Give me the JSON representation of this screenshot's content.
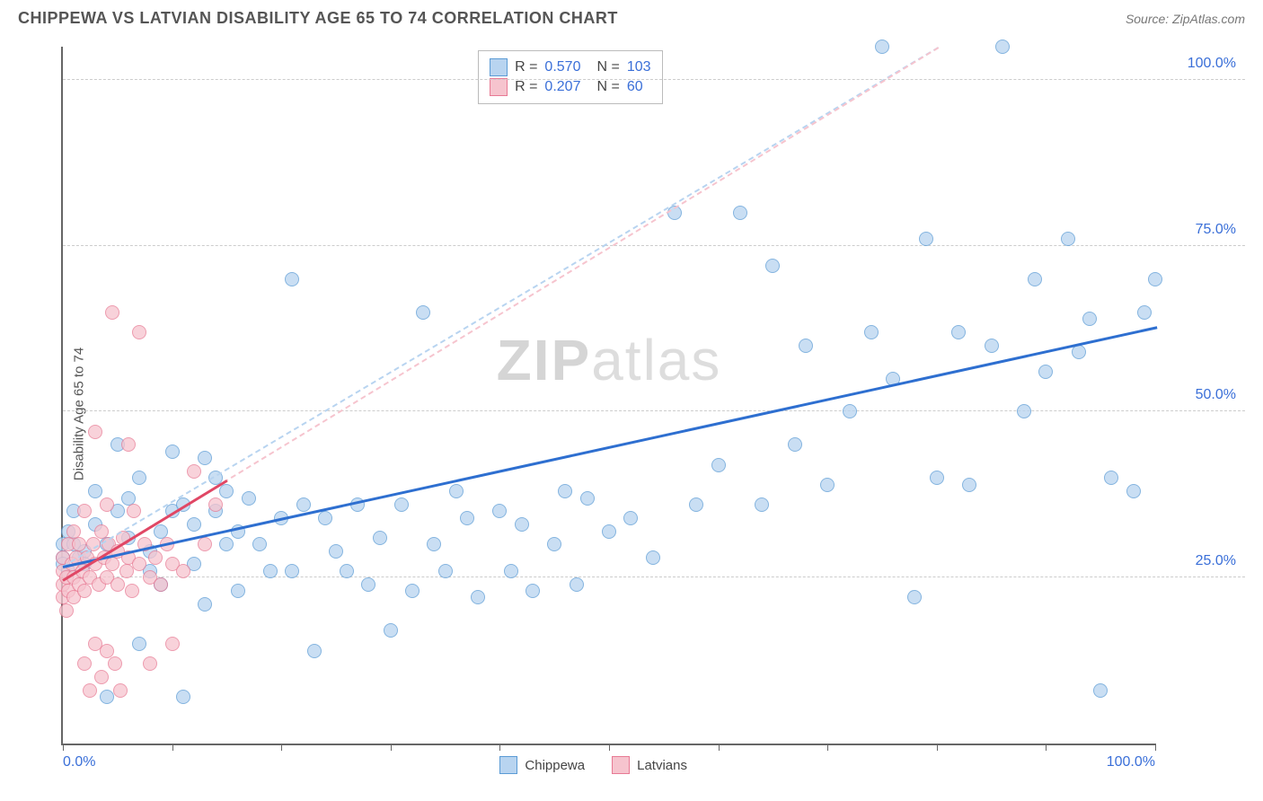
{
  "title": "CHIPPEWA VS LATVIAN DISABILITY AGE 65 TO 74 CORRELATION CHART",
  "source_label": "Source: ZipAtlas.com",
  "y_axis_label": "Disability Age 65 to 74",
  "watermark": {
    "part1": "ZIP",
    "part2": "atlas"
  },
  "chart": {
    "type": "scatter",
    "xlim": [
      0,
      100
    ],
    "ylim": [
      0,
      105
    ],
    "y_ticks": [
      25,
      50,
      75,
      100
    ],
    "y_tick_labels": [
      "25.0%",
      "50.0%",
      "75.0%",
      "100.0%"
    ],
    "x_ticks": [
      0,
      10,
      20,
      30,
      40,
      50,
      60,
      70,
      80,
      90,
      100
    ],
    "x_tick_labels_ends": [
      "0.0%",
      "100.0%"
    ],
    "background_color": "#ffffff",
    "grid_color": "#cccccc",
    "point_radius": 8,
    "series": [
      {
        "name": "Chippewa",
        "fill_color": "#b8d4f0",
        "stroke_color": "#5b9bd5",
        "r_value": "0.570",
        "n_value": "103",
        "trend": {
          "x1": 0,
          "y1": 27,
          "x2": 100,
          "y2": 63,
          "color": "#2e6fd0",
          "width": 3,
          "solid": true
        },
        "trend_dash": {
          "x1": 0,
          "y1": 27,
          "x2": 80,
          "y2": 105,
          "color": "#b8d4f0"
        },
        "points": [
          [
            0,
            28
          ],
          [
            0,
            30
          ],
          [
            0,
            27
          ],
          [
            0.5,
            26
          ],
          [
            0.5,
            32
          ],
          [
            1,
            35
          ],
          [
            1,
            30
          ],
          [
            1.5,
            28
          ],
          [
            2,
            29
          ],
          [
            2,
            27
          ],
          [
            3,
            33
          ],
          [
            3,
            38
          ],
          [
            4,
            30
          ],
          [
            4,
            7
          ],
          [
            5,
            45
          ],
          [
            5,
            35
          ],
          [
            6,
            37
          ],
          [
            6,
            31
          ],
          [
            7,
            40
          ],
          [
            7,
            15
          ],
          [
            8,
            29
          ],
          [
            8,
            26
          ],
          [
            9,
            32
          ],
          [
            9,
            24
          ],
          [
            10,
            44
          ],
          [
            10,
            35
          ],
          [
            11,
            36
          ],
          [
            11,
            7
          ],
          [
            12,
            33
          ],
          [
            12,
            27
          ],
          [
            13,
            43
          ],
          [
            13,
            21
          ],
          [
            14,
            35
          ],
          [
            14,
            40
          ],
          [
            15,
            38
          ],
          [
            15,
            30
          ],
          [
            16,
            32
          ],
          [
            16,
            23
          ],
          [
            17,
            37
          ],
          [
            18,
            30
          ],
          [
            19,
            26
          ],
          [
            20,
            34
          ],
          [
            21,
            70
          ],
          [
            21,
            26
          ],
          [
            22,
            36
          ],
          [
            23,
            14
          ],
          [
            24,
            34
          ],
          [
            25,
            29
          ],
          [
            26,
            26
          ],
          [
            27,
            36
          ],
          [
            28,
            24
          ],
          [
            29,
            31
          ],
          [
            30,
            17
          ],
          [
            31,
            36
          ],
          [
            32,
            23
          ],
          [
            33,
            65
          ],
          [
            34,
            30
          ],
          [
            35,
            26
          ],
          [
            36,
            38
          ],
          [
            37,
            34
          ],
          [
            38,
            22
          ],
          [
            40,
            35
          ],
          [
            41,
            26
          ],
          [
            42,
            33
          ],
          [
            43,
            23
          ],
          [
            45,
            30
          ],
          [
            46,
            38
          ],
          [
            47,
            24
          ],
          [
            48,
            37
          ],
          [
            50,
            32
          ],
          [
            52,
            34
          ],
          [
            54,
            28
          ],
          [
            56,
            80
          ],
          [
            58,
            36
          ],
          [
            60,
            42
          ],
          [
            62,
            80
          ],
          [
            64,
            36
          ],
          [
            65,
            72
          ],
          [
            67,
            45
          ],
          [
            68,
            60
          ],
          [
            70,
            39
          ],
          [
            72,
            50
          ],
          [
            74,
            62
          ],
          [
            75,
            105
          ],
          [
            76,
            55
          ],
          [
            78,
            22
          ],
          [
            79,
            76
          ],
          [
            80,
            40
          ],
          [
            82,
            62
          ],
          [
            83,
            39
          ],
          [
            85,
            60
          ],
          [
            86,
            105
          ],
          [
            88,
            50
          ],
          [
            89,
            70
          ],
          [
            90,
            56
          ],
          [
            92,
            76
          ],
          [
            93,
            59
          ],
          [
            94,
            64
          ],
          [
            95,
            8
          ],
          [
            96,
            40
          ],
          [
            98,
            38
          ],
          [
            99,
            65
          ],
          [
            100,
            70
          ]
        ]
      },
      {
        "name": "Latvians",
        "fill_color": "#f6c4ce",
        "stroke_color": "#e87a94",
        "r_value": "0.207",
        "n_value": "60",
        "trend": {
          "x1": 0,
          "y1": 25,
          "x2": 15,
          "y2": 40,
          "color": "#e04765",
          "width": 3,
          "solid": true
        },
        "trend_dash": {
          "x1": 0,
          "y1": 25,
          "x2": 80,
          "y2": 105,
          "color": "#f6c4ce"
        },
        "points": [
          [
            0,
            22
          ],
          [
            0,
            24
          ],
          [
            0,
            26
          ],
          [
            0,
            28
          ],
          [
            0.3,
            20
          ],
          [
            0.3,
            25
          ],
          [
            0.5,
            23
          ],
          [
            0.5,
            30
          ],
          [
            0.8,
            27
          ],
          [
            1,
            25
          ],
          [
            1,
            22
          ],
          [
            1,
            32
          ],
          [
            1.2,
            28
          ],
          [
            1.5,
            24
          ],
          [
            1.5,
            30
          ],
          [
            1.8,
            26
          ],
          [
            2,
            23
          ],
          [
            2,
            35
          ],
          [
            2,
            12
          ],
          [
            2.2,
            28
          ],
          [
            2.5,
            25
          ],
          [
            2.5,
            8
          ],
          [
            2.8,
            30
          ],
          [
            3,
            27
          ],
          [
            3,
            47
          ],
          [
            3,
            15
          ],
          [
            3.3,
            24
          ],
          [
            3.5,
            10
          ],
          [
            3.5,
            32
          ],
          [
            3.8,
            28
          ],
          [
            4,
            25
          ],
          [
            4,
            36
          ],
          [
            4,
            14
          ],
          [
            4.2,
            30
          ],
          [
            4.5,
            27
          ],
          [
            4.5,
            65
          ],
          [
            4.8,
            12
          ],
          [
            5,
            29
          ],
          [
            5,
            24
          ],
          [
            5.3,
            8
          ],
          [
            5.5,
            31
          ],
          [
            5.8,
            26
          ],
          [
            6,
            28
          ],
          [
            6,
            45
          ],
          [
            6.3,
            23
          ],
          [
            6.5,
            35
          ],
          [
            7,
            27
          ],
          [
            7,
            62
          ],
          [
            7.5,
            30
          ],
          [
            8,
            25
          ],
          [
            8,
            12
          ],
          [
            8.5,
            28
          ],
          [
            9,
            24
          ],
          [
            9.5,
            30
          ],
          [
            10,
            27
          ],
          [
            10,
            15
          ],
          [
            11,
            26
          ],
          [
            12,
            41
          ],
          [
            13,
            30
          ],
          [
            14,
            36
          ]
        ]
      }
    ]
  },
  "legend_top": {
    "r_label": "R =",
    "n_label": "N ="
  },
  "legend_bottom": {
    "items": [
      "Chippewa",
      "Latvians"
    ]
  }
}
